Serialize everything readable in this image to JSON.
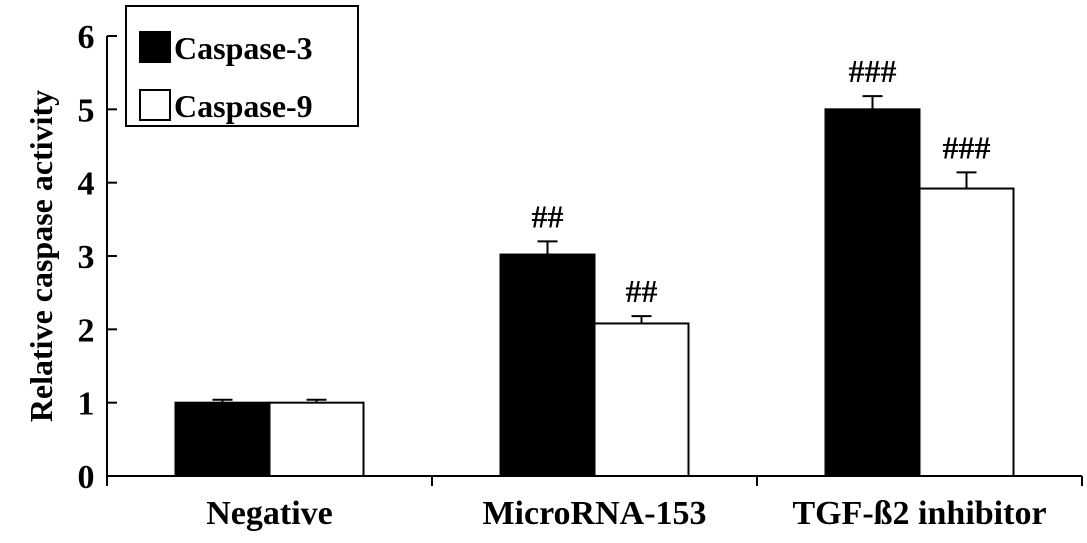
{
  "chart_data": {
    "type": "bar",
    "categories": [
      "Negative",
      "MicroRNA-153",
      "TGF-ß2 inhibitor"
    ],
    "series": [
      {
        "name": "Caspase-3",
        "values": [
          1.0,
          3.02,
          5.0
        ],
        "errors": [
          0.04,
          0.18,
          0.18
        ],
        "annotations": [
          "",
          "##",
          "###"
        ],
        "color": "#000000"
      },
      {
        "name": "Caspase-9",
        "values": [
          1.0,
          2.08,
          3.92
        ],
        "errors": [
          0.04,
          0.1,
          0.22
        ],
        "annotations": [
          "",
          "##",
          "###"
        ],
        "color": "#ffffff"
      }
    ],
    "title": "",
    "xlabel": "",
    "ylabel": "Relative caspase activity",
    "ylim": [
      0,
      6
    ],
    "yticks": [
      0,
      1,
      2,
      3,
      4,
      5,
      6
    ],
    "grid": false,
    "legend": "top-left"
  }
}
